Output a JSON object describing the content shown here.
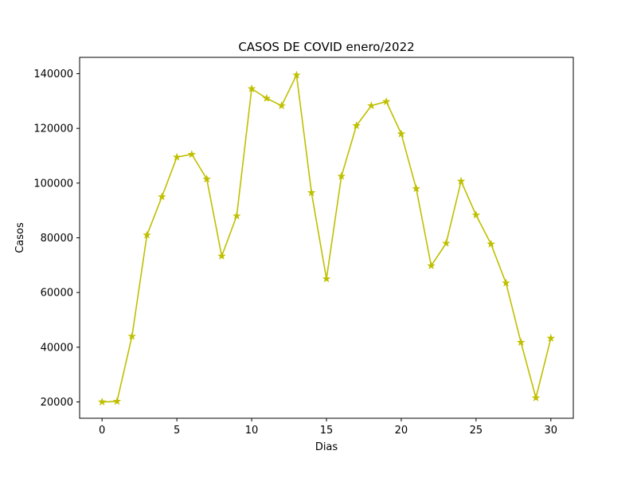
{
  "chart_data": {
    "type": "line",
    "title": "CASOS DE COVID enero/2022",
    "xlabel": "Dias",
    "ylabel": "Casos",
    "x": [
      0,
      1,
      2,
      3,
      4,
      5,
      6,
      7,
      8,
      9,
      10,
      11,
      12,
      13,
      14,
      15,
      16,
      17,
      18,
      19,
      20,
      21,
      22,
      23,
      24,
      25,
      26,
      27,
      28,
      29,
      30
    ],
    "series": [
      {
        "values": [
          20000,
          20200,
          44000,
          81000,
          95000,
          109500,
          110500,
          101500,
          73300,
          88000,
          134500,
          131000,
          128300,
          139500,
          96500,
          65000,
          102500,
          121000,
          128300,
          129800,
          118000,
          98000,
          69800,
          78000,
          100700,
          88300,
          77700,
          63500,
          41800,
          21500,
          43300
        ],
        "color": "#bfbf00",
        "marker": "star"
      }
    ],
    "xlim": [
      -1.5,
      31.5
    ],
    "ylim": [
      14035,
      145965
    ],
    "xticks": [
      0,
      5,
      10,
      15,
      20,
      25,
      30
    ],
    "yticks": [
      20000,
      40000,
      60000,
      80000,
      100000,
      120000,
      140000
    ],
    "grid": false,
    "legend": false
  }
}
